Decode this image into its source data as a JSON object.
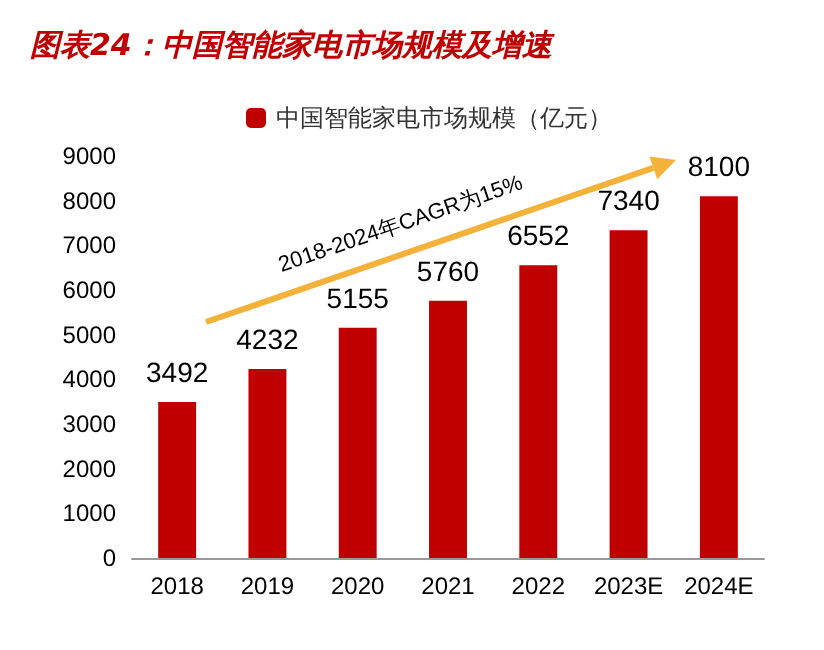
{
  "chart_data": {
    "type": "bar",
    "title": "图表24：中国智能家电市场规模及增速",
    "categories": [
      "2018",
      "2019",
      "2020",
      "2021",
      "2022",
      "2023E",
      "2024E"
    ],
    "series": [
      {
        "name": "中国智能家电市场规模（亿元）",
        "color": "#c00000",
        "values": [
          3492,
          4232,
          5155,
          5760,
          6552,
          7340,
          8100
        ]
      }
    ],
    "ylim": [
      0,
      9000
    ],
    "yticks": [
      0,
      1000,
      2000,
      3000,
      4000,
      5000,
      6000,
      7000,
      8000,
      9000
    ],
    "grid": false,
    "legend": "top left",
    "data_labels": true,
    "annotations": [
      "2018-2024年CAGR为15%"
    ]
  }
}
